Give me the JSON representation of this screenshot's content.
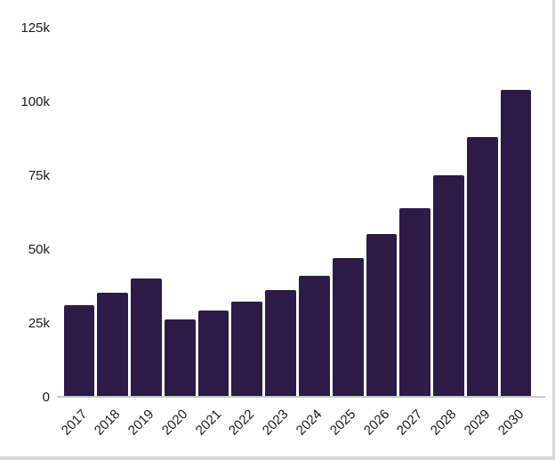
{
  "chart_data": {
    "type": "bar",
    "title": "",
    "xlabel": "",
    "ylabel": "",
    "categories": [
      "2017",
      "2018",
      "2019",
      "2020",
      "2021",
      "2022",
      "2023",
      "2024",
      "2025",
      "2026",
      "2027",
      "2028",
      "2029",
      "2030"
    ],
    "values": [
      31000,
      35000,
      40000,
      26000,
      29000,
      32000,
      36000,
      41000,
      47000,
      55000,
      64000,
      75000,
      88000,
      104000
    ],
    "ylim": [
      0,
      125000
    ],
    "yticks": [
      {
        "value": 0,
        "label": "0"
      },
      {
        "value": 25000,
        "label": "25k"
      },
      {
        "value": 50000,
        "label": "50k"
      },
      {
        "value": 75000,
        "label": "75k"
      },
      {
        "value": 100000,
        "label": "100k"
      },
      {
        "value": 125000,
        "label": "125k"
      }
    ],
    "grid": false,
    "legend": false,
    "bar_color": "#2e1a47",
    "axis_line_color": "#c9c9c9",
    "label_color": "#1a1a1a"
  }
}
